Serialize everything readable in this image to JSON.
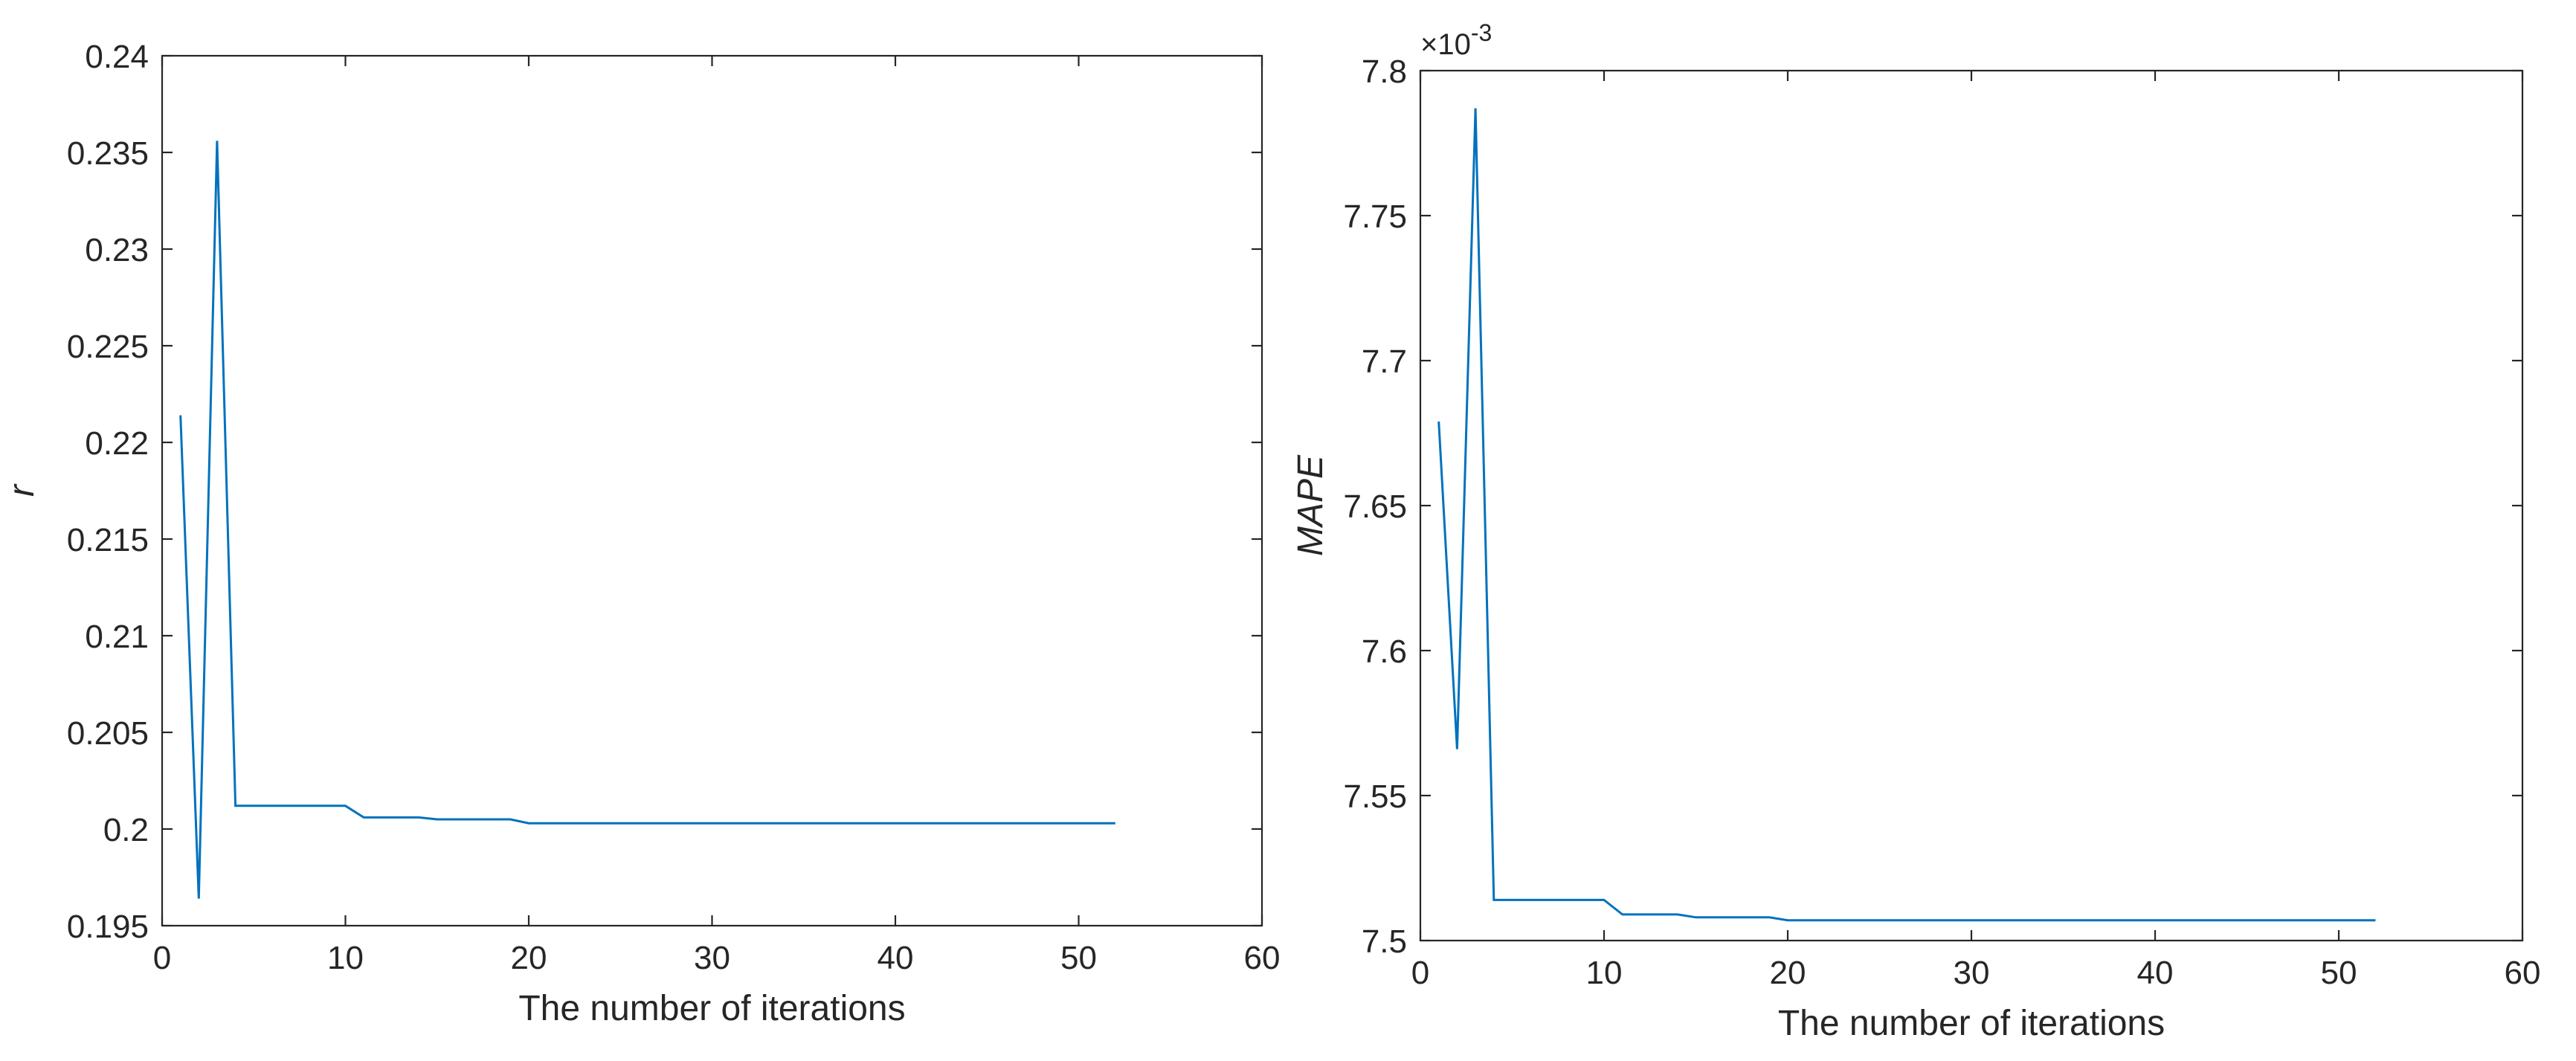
{
  "chart_data": [
    {
      "type": "line",
      "title": "",
      "xlabel": "The number of iterations",
      "ylabel": "r",
      "xlim": [
        0,
        60
      ],
      "ylim": [
        0.195,
        0.24
      ],
      "xticks": [
        0,
        10,
        20,
        30,
        40,
        50,
        60
      ],
      "xtick_labels": [
        "0",
        "10",
        "20",
        "30",
        "40",
        "50",
        "60"
      ],
      "yticks": [
        0.195,
        0.2,
        0.205,
        0.21,
        0.215,
        0.22,
        0.225,
        0.23,
        0.235,
        0.24
      ],
      "ytick_labels": [
        "0.195",
        "0.2",
        "0.205",
        "0.21",
        "0.215",
        "0.22",
        "0.225",
        "0.23",
        "0.235",
        "0.24"
      ],
      "y_exponent_label": "",
      "grid": false,
      "box": true,
      "series": [
        {
          "color": "#0072BD",
          "x": [
            1,
            2,
            3,
            4,
            5,
            6,
            7,
            8,
            9,
            10,
            11,
            12,
            13,
            14,
            15,
            16,
            17,
            18,
            19,
            20,
            21,
            22,
            23,
            24,
            25,
            26,
            27,
            28,
            29,
            30,
            31,
            32,
            33,
            34,
            35,
            36,
            37,
            38,
            39,
            40,
            41,
            42,
            43,
            44,
            45,
            46,
            47,
            48,
            49,
            50,
            51,
            52
          ],
          "y": [
            0.2214,
            0.1964,
            0.2356,
            0.2012,
            0.2012,
            0.2012,
            0.2012,
            0.2012,
            0.2012,
            0.2012,
            0.2006,
            0.2006,
            0.2006,
            0.2006,
            0.2005,
            0.2005,
            0.2005,
            0.2005,
            0.2005,
            0.2003,
            0.2003,
            0.2003,
            0.2003,
            0.2003,
            0.2003,
            0.2003,
            0.2003,
            0.2003,
            0.2003,
            0.2003,
            0.2003,
            0.2003,
            0.2003,
            0.2003,
            0.2003,
            0.2003,
            0.2003,
            0.2003,
            0.2003,
            0.2003,
            0.2003,
            0.2003,
            0.2003,
            0.2003,
            0.2003,
            0.2003,
            0.2003,
            0.2003,
            0.2003,
            0.2003,
            0.2003,
            0.2003
          ]
        }
      ]
    },
    {
      "type": "line",
      "title": "",
      "xlabel": "The number of iterations",
      "ylabel": "MAPE",
      "xlim": [
        0,
        60
      ],
      "ylim": [
        7.5,
        7.8
      ],
      "xticks": [
        0,
        10,
        20,
        30,
        40,
        50,
        60
      ],
      "xtick_labels": [
        "0",
        "10",
        "20",
        "30",
        "40",
        "50",
        "60"
      ],
      "yticks": [
        7.5,
        7.55,
        7.6,
        7.65,
        7.7,
        7.75,
        7.8
      ],
      "ytick_labels": [
        "7.5",
        "7.55",
        "7.6",
        "7.65",
        "7.7",
        "7.75",
        "7.8"
      ],
      "y_exponent_label": "×10",
      "y_exponent_power": "-3",
      "grid": false,
      "box": true,
      "series": [
        {
          "color": "#0072BD",
          "x": [
            1,
            2,
            3,
            4,
            5,
            6,
            7,
            8,
            9,
            10,
            11,
            12,
            13,
            14,
            15,
            16,
            17,
            18,
            19,
            20,
            21,
            22,
            23,
            24,
            25,
            26,
            27,
            28,
            29,
            30,
            31,
            32,
            33,
            34,
            35,
            36,
            37,
            38,
            39,
            40,
            41,
            42,
            43,
            44,
            45,
            46,
            47,
            48,
            49,
            50,
            51,
            52
          ],
          "y": [
            7.679,
            7.566,
            7.787,
            7.514,
            7.514,
            7.514,
            7.514,
            7.514,
            7.514,
            7.514,
            7.509,
            7.509,
            7.509,
            7.509,
            7.508,
            7.508,
            7.508,
            7.508,
            7.508,
            7.507,
            7.507,
            7.507,
            7.507,
            7.507,
            7.507,
            7.507,
            7.507,
            7.507,
            7.507,
            7.507,
            7.507,
            7.507,
            7.507,
            7.507,
            7.507,
            7.507,
            7.507,
            7.507,
            7.507,
            7.507,
            7.507,
            7.507,
            7.507,
            7.507,
            7.507,
            7.507,
            7.507,
            7.507,
            7.507,
            7.507,
            7.507,
            7.507
          ]
        }
      ]
    }
  ]
}
